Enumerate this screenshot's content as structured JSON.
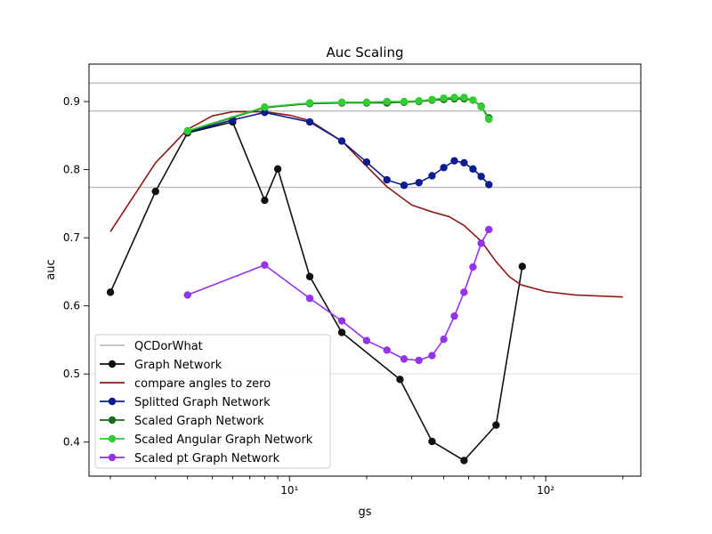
{
  "chart_data": {
    "type": "line",
    "title": "Auc Scaling",
    "xlabel": "gs",
    "ylabel": "auc",
    "xscale": "log",
    "xlim": [
      1.65,
      235
    ],
    "ylim": [
      0.35,
      0.955
    ],
    "x_major_ticks": [
      10,
      100
    ],
    "x_major_tick_labels": [
      "10¹",
      "10²"
    ],
    "y_ticks": [
      0.4,
      0.5,
      0.6,
      0.7,
      0.8,
      0.9
    ],
    "y_tick_labels": [
      "0.4",
      "0.5",
      "0.6",
      "0.7",
      "0.8",
      "0.9"
    ],
    "grid": false,
    "legend_position": "lower-left",
    "reference_lines": {
      "name": "QCDorWhat",
      "color": "#bfbfbf",
      "values": [
        0.927,
        0.886,
        0.774
      ],
      "faint_values": [
        0.5
      ]
    },
    "series": [
      {
        "name": "Graph Network",
        "color": "#111111",
        "marker": true,
        "x": [
          2,
          3,
          4,
          6,
          8,
          9,
          12,
          16,
          27,
          36,
          48,
          64,
          81
        ],
        "y": [
          0.62,
          0.768,
          0.854,
          0.87,
          0.755,
          0.801,
          0.643,
          0.561,
          0.492,
          0.401,
          0.373,
          0.425,
          0.658
        ]
      },
      {
        "name": "compare angles to zero",
        "color": "#8b1a1a",
        "marker": false,
        "x": [
          2,
          3,
          4,
          5,
          6,
          8,
          10,
          12,
          16,
          20,
          24,
          30,
          36,
          42,
          48,
          56,
          64,
          72,
          80,
          100,
          130,
          200
        ],
        "y": [
          0.709,
          0.81,
          0.859,
          0.879,
          0.885,
          0.885,
          0.88,
          0.872,
          0.842,
          0.805,
          0.775,
          0.748,
          0.738,
          0.731,
          0.718,
          0.695,
          0.665,
          0.643,
          0.631,
          0.621,
          0.616,
          0.613
        ]
      },
      {
        "name": "Splitted Graph Network",
        "color": "#0d1c8f",
        "marker": true,
        "x": [
          4,
          6,
          8,
          12,
          16,
          20,
          24,
          28,
          32,
          36,
          40,
          44,
          48,
          52,
          56,
          60
        ],
        "y": [
          0.855,
          0.873,
          0.884,
          0.87,
          0.842,
          0.811,
          0.785,
          0.777,
          0.781,
          0.791,
          0.803,
          0.813,
          0.81,
          0.801,
          0.79,
          0.778
        ]
      },
      {
        "name": "Scaled Graph Network",
        "color": "#1a6b1a",
        "marker": true,
        "x": [
          4,
          8,
          12,
          16,
          20,
          24,
          28,
          32,
          36,
          40,
          44,
          48,
          52,
          56,
          60
        ],
        "y": [
          0.856,
          0.891,
          0.897,
          0.898,
          0.898,
          0.898,
          0.899,
          0.9,
          0.902,
          0.903,
          0.904,
          0.904,
          0.902,
          0.893,
          0.876
        ]
      },
      {
        "name": "Scaled Angular Graph Network",
        "color": "#33cc33",
        "marker": true,
        "x": [
          4,
          8,
          12,
          16,
          20,
          24,
          28,
          32,
          36,
          40,
          44,
          48,
          52,
          56,
          60
        ],
        "y": [
          0.857,
          0.892,
          0.898,
          0.899,
          0.899,
          0.9,
          0.9,
          0.901,
          0.903,
          0.905,
          0.906,
          0.906,
          0.902,
          0.892,
          0.874
        ]
      },
      {
        "name": "Scaled pt Graph Network",
        "color": "#9333ea",
        "marker": true,
        "x": [
          4,
          8,
          12,
          16,
          20,
          24,
          28,
          32,
          36,
          40,
          44,
          48,
          52,
          56,
          60
        ],
        "y": [
          0.616,
          0.66,
          0.611,
          0.578,
          0.549,
          0.535,
          0.522,
          0.52,
          0.527,
          0.551,
          0.585,
          0.62,
          0.657,
          0.692,
          0.712
        ]
      }
    ]
  }
}
